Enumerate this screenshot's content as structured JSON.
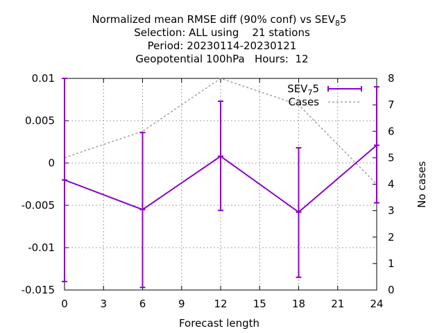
{
  "chart_data": {
    "type": "line",
    "title_lines": [
      "Normalized mean RMSE diff (90% conf) vs SEV",
      "Selection: ALL using    21 stations",
      "Period: 20230114-20230121",
      "Geopotential 100hPa   Hours:  12"
    ],
    "title_ref": {
      "base": "SEV",
      "sub": "8",
      "tail": "5"
    },
    "xlabel": "Forecast length",
    "ylabel": "",
    "y2label": "No cases",
    "xlim": [
      0,
      24
    ],
    "ylim": [
      -0.015,
      0.01
    ],
    "y2lim": [
      0,
      8
    ],
    "x_ticks": [
      0,
      3,
      6,
      9,
      12,
      15,
      18,
      21,
      24
    ],
    "y_ticks": [
      "0.01",
      "0.005",
      "0",
      "-0.005",
      "-0.01",
      "-0.015"
    ],
    "y_tick_values": [
      0.01,
      0.005,
      0,
      -0.005,
      -0.01,
      -0.015
    ],
    "y2_ticks": [
      0,
      1,
      2,
      3,
      4,
      5,
      6,
      7,
      8
    ],
    "grid": true,
    "legend_position": "top-right",
    "series": [
      {
        "name_base": "SEV",
        "name_sub": "7",
        "name_tail": "5",
        "style": "line-errorbars",
        "color": "#8b00c8",
        "x": [
          0,
          6,
          12,
          18,
          24
        ],
        "y": [
          -0.002,
          -0.0055,
          0.0008,
          -0.0058,
          0.0021
        ],
        "err_low": [
          -0.014,
          -0.0147,
          -0.0056,
          -0.0135,
          -0.0047
        ],
        "err_high": [
          0.01,
          0.0036,
          0.0073,
          0.0018,
          0.009
        ]
      },
      {
        "name": "Cases",
        "style": "dashed",
        "axis": "y2",
        "color": "#a0a0a0",
        "x": [
          0,
          6,
          12,
          18,
          24
        ],
        "y": [
          5,
          6,
          8,
          7,
          4
        ]
      }
    ]
  }
}
